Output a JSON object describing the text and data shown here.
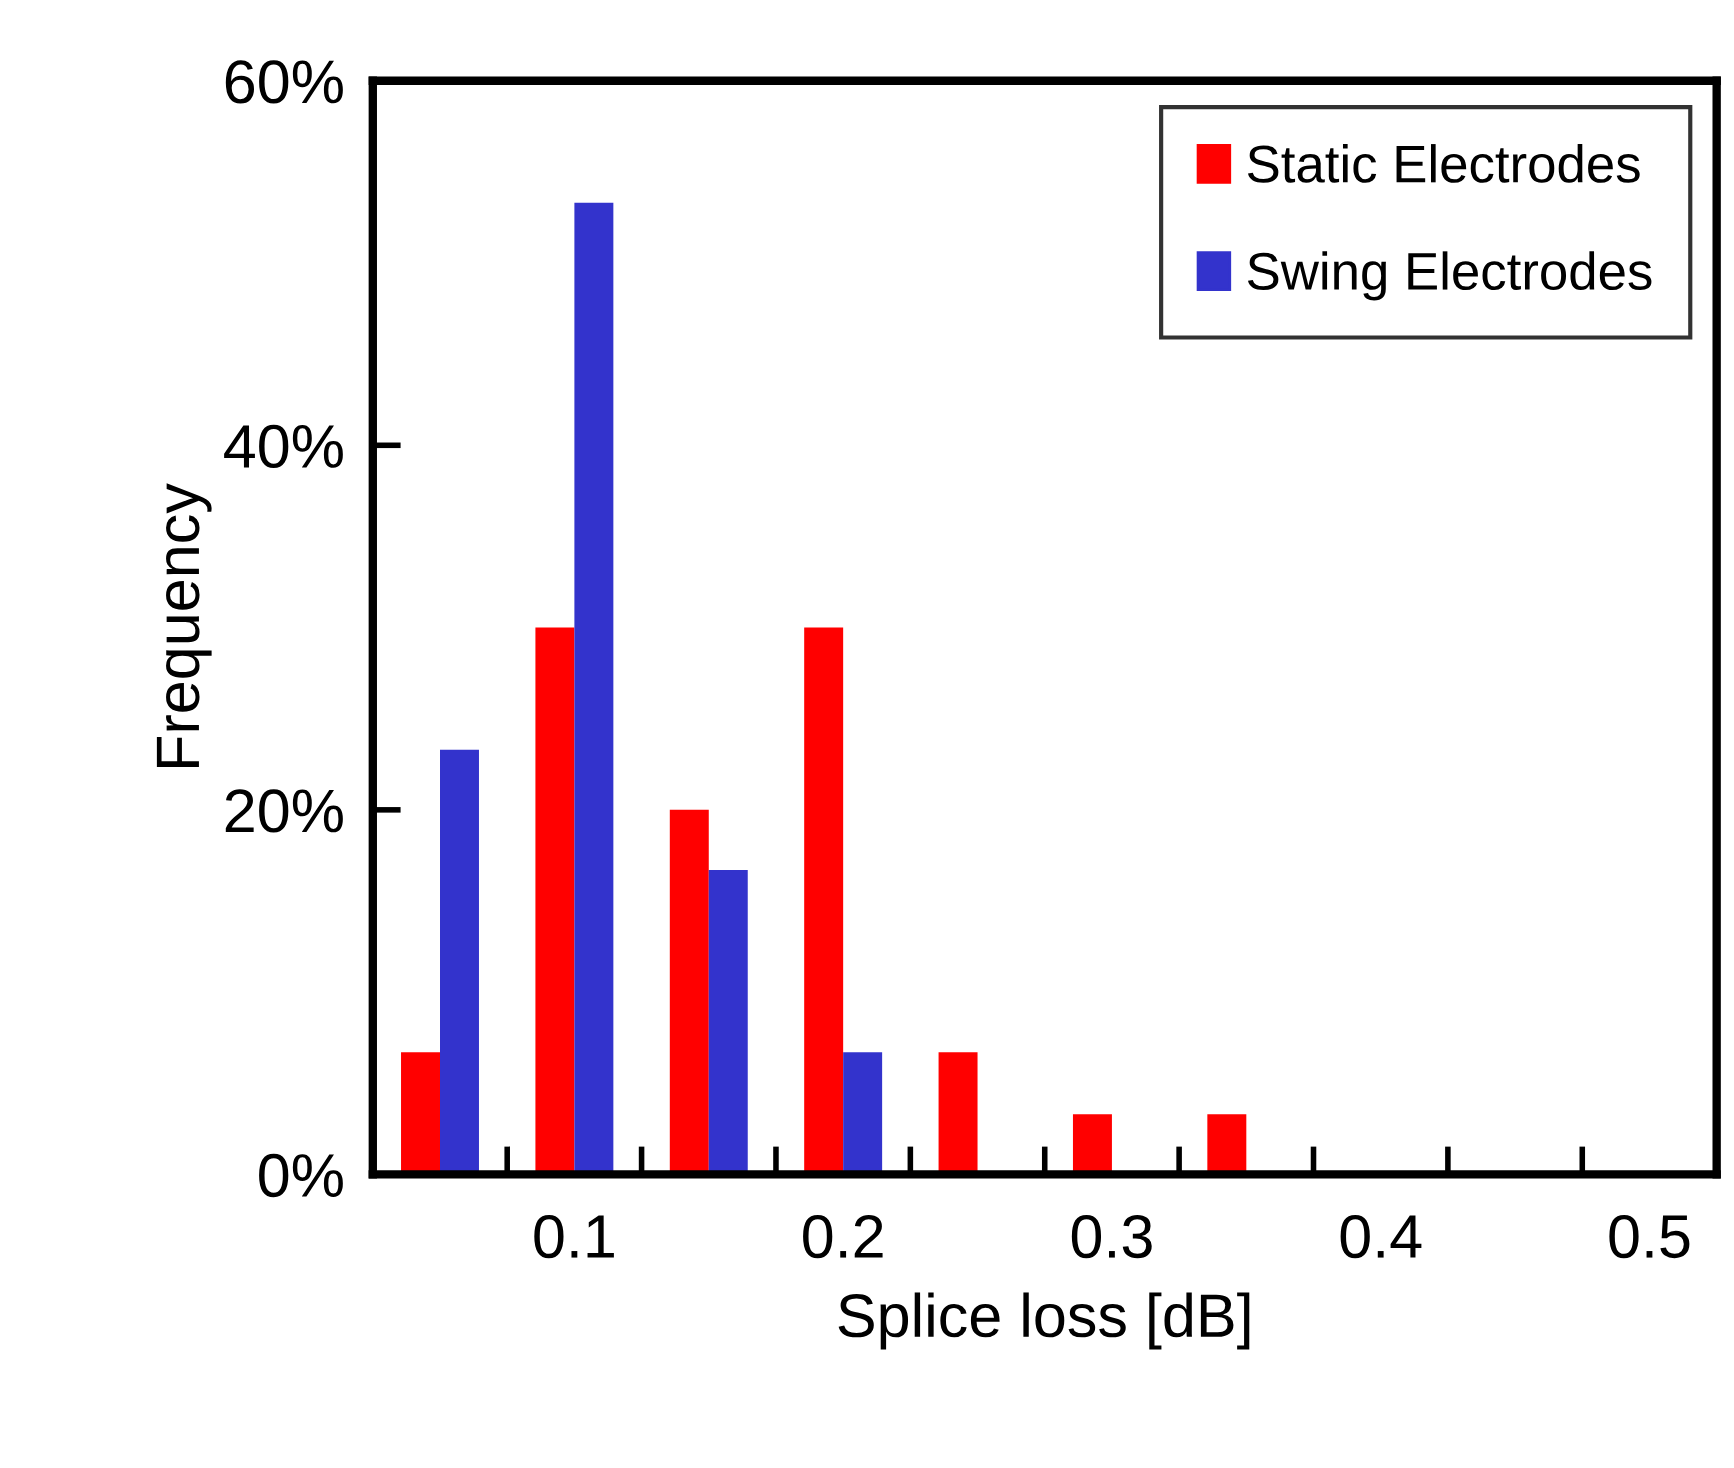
{
  "chart_data": {
    "type": "bar",
    "xlabel": "Splice loss [dB]",
    "ylabel": "Frequency",
    "categories": [
      null,
      "0.1",
      null,
      "0.2",
      null,
      "0.3",
      null,
      "0.4",
      null,
      "0.5"
    ],
    "series": [
      {
        "name": "Static Electrodes",
        "color": "#ff0000",
        "values": [
          6.7,
          30,
          20,
          30,
          6.7,
          3.3,
          3.3,
          0,
          0,
          0
        ]
      },
      {
        "name": "Swing Electrodes",
        "color": "#3333cc",
        "values": [
          23.3,
          53.3,
          16.7,
          6.7,
          0,
          0,
          0,
          0,
          0,
          0
        ]
      }
    ],
    "ylim": [
      0,
      60
    ],
    "yticks": [
      {
        "value": 0,
        "label": "0%"
      },
      {
        "value": 20,
        "label": "20%"
      },
      {
        "value": 40,
        "label": "40%"
      },
      {
        "value": 60,
        "label": "60%"
      }
    ],
    "grid": false,
    "legend": "top right"
  }
}
